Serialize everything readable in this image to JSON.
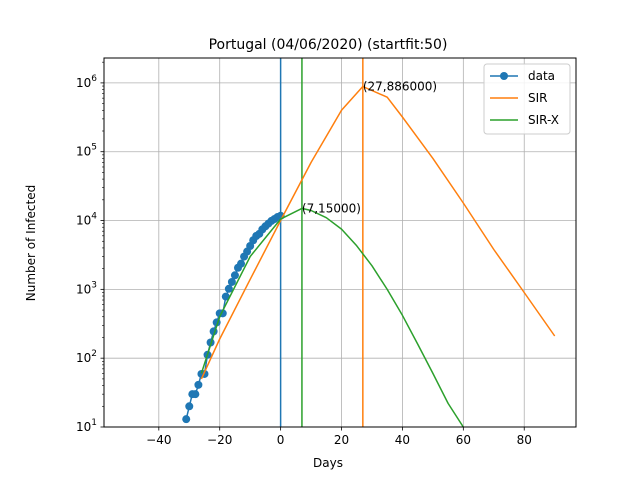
{
  "chart_data": {
    "type": "line",
    "title": "Portugal (04/06/2020) (startfit:50)",
    "xlabel": "Days",
    "ylabel": "Number of Infected",
    "xlim": [
      -58,
      97
    ],
    "ylim": [
      10,
      2300000
    ],
    "y_scale": "log",
    "grid": true,
    "legend_position": "top-right",
    "x_ticks": [
      -40,
      -20,
      0,
      20,
      40,
      60,
      80
    ],
    "x_tick_labels": [
      "−40",
      "−20",
      "0",
      "20",
      "40",
      "60",
      "80"
    ],
    "y_ticks": [
      10,
      100,
      1000,
      10000,
      100000,
      1000000
    ],
    "y_tick_labels": [
      {
        "base": "10",
        "exp": "1"
      },
      {
        "base": "10",
        "exp": "2"
      },
      {
        "base": "10",
        "exp": "3"
      },
      {
        "base": "10",
        "exp": "4"
      },
      {
        "base": "10",
        "exp": "5"
      },
      {
        "base": "10",
        "exp": "6"
      }
    ],
    "series": [
      {
        "name": "data",
        "color": "#1f77b4",
        "marker": "circle",
        "x": [
          -31,
          -30,
          -29,
          -28,
          -27,
          -26,
          -25,
          -24,
          -23,
          -22,
          -21,
          -20,
          -19,
          -18,
          -17,
          -16,
          -15,
          -14,
          -13,
          -12,
          -11,
          -10,
          -9,
          -8,
          -7,
          -6,
          -5,
          -4,
          -3,
          -2,
          -1,
          0
        ],
        "y": [
          13,
          20,
          30,
          30,
          41,
          59,
          59,
          112,
          169,
          245,
          331,
          448,
          448,
          785,
          1020,
          1280,
          1600,
          2060,
          2362,
          2995,
          3544,
          4268,
          5170,
          5962,
          6408,
          7443,
          8251,
          9034,
          9886,
          10524,
          11278,
          11730
        ]
      },
      {
        "name": "SIR",
        "color": "#ff7f0e",
        "x": [
          -26,
          -20,
          -10,
          0,
          10,
          20,
          27,
          35,
          40,
          50,
          60,
          70,
          80,
          90
        ],
        "y": [
          50,
          190,
          1400,
          10000,
          70000,
          400000,
          886000,
          620000,
          320000,
          80000,
          18000,
          3800,
          900,
          210
        ]
      },
      {
        "name": "SIR-X",
        "color": "#2ca02c",
        "x": [
          -26,
          -20,
          -10,
          0,
          7,
          10,
          15,
          20,
          25,
          30,
          35,
          40,
          45,
          50,
          55,
          60
        ],
        "y": [
          60,
          400,
          3000,
          10500,
          15000,
          14000,
          11000,
          7500,
          4300,
          2200,
          1000,
          420,
          160,
          60,
          22,
          10
        ]
      }
    ],
    "vlines": [
      {
        "x": 0,
        "color": "#1f77b4"
      },
      {
        "x": 7,
        "color": "#2ca02c"
      },
      {
        "x": 27,
        "color": "#ff7f0e"
      }
    ],
    "annotations": [
      {
        "text": "(27,886000)",
        "x": 27,
        "y": 886000
      },
      {
        "text": "(7,15000)",
        "x": 7,
        "y": 15000
      }
    ]
  }
}
